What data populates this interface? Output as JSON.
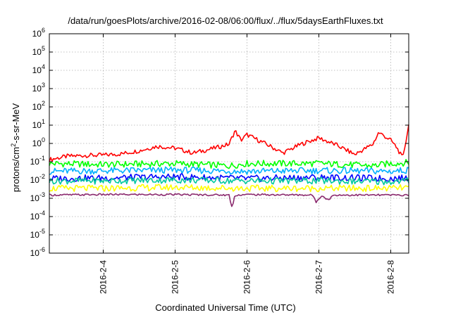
{
  "chart_data": {
    "type": "line",
    "title": "/data/run/goesPlots/archive/2016-02-08/06:00/flux/../flux/5daysEarthFluxes.txt",
    "xlabel": "Coordinated Universal Time (UTC)",
    "ylabel_parts": [
      "protons/cm",
      "2",
      "-s-sr-MeV"
    ],
    "yscale": "log",
    "ylim": [
      1e-06,
      1000000.0
    ],
    "xlim": [
      "2016-02-03T06:00",
      "2016-02-08T06:00"
    ],
    "grid": true,
    "x_ticks": [
      {
        "label": "2016-2-4",
        "date": "2016-02-04T00:00"
      },
      {
        "label": "2016-2-5",
        "date": "2016-02-05T00:00"
      },
      {
        "label": "2016-2-6",
        "date": "2016-02-06T00:00"
      },
      {
        "label": "2016-2-7",
        "date": "2016-02-07T00:00"
      },
      {
        "label": "2016-2-8",
        "date": "2016-02-08T00:00"
      }
    ],
    "y_ticks": [
      {
        "base": "10",
        "exp": "-6",
        "value": 1e-06
      },
      {
        "base": "10",
        "exp": "-5",
        "value": 1e-05
      },
      {
        "base": "10",
        "exp": "-4",
        "value": 0.0001
      },
      {
        "base": "10",
        "exp": "-3",
        "value": 0.001
      },
      {
        "base": "10",
        "exp": "-2",
        "value": 0.01
      },
      {
        "base": "10",
        "exp": "-1",
        "value": 0.1
      },
      {
        "base": "10",
        "exp": "0",
        "value": 1
      },
      {
        "base": "10",
        "exp": "1",
        "value": 10
      },
      {
        "base": "10",
        "exp": "2",
        "value": 100
      },
      {
        "base": "10",
        "exp": "3",
        "value": 1000
      },
      {
        "base": "10",
        "exp": "4",
        "value": 10000
      },
      {
        "base": "10",
        "exp": "5",
        "value": 100000
      },
      {
        "base": "10",
        "exp": "6",
        "value": 1000000
      }
    ],
    "series": [
      {
        "color": "#ff0000",
        "points": [
          [
            "2016-02-03T06:00",
            0.13
          ],
          [
            "2016-02-03T12:00",
            0.2
          ],
          [
            "2016-02-03T18:00",
            0.22
          ],
          [
            "2016-02-04T00:00",
            0.23
          ],
          [
            "2016-02-04T06:00",
            0.27
          ],
          [
            "2016-02-04T12:00",
            0.4
          ],
          [
            "2016-02-04T18:00",
            0.7
          ],
          [
            "2016-02-05T00:00",
            0.55
          ],
          [
            "2016-02-05T06:00",
            0.3
          ],
          [
            "2016-02-05T12:00",
            0.5
          ],
          [
            "2016-02-05T18:00",
            0.9
          ],
          [
            "2016-02-05T20:00",
            5.0
          ],
          [
            "2016-02-05T22:00",
            1.5
          ],
          [
            "2016-02-06T00:00",
            3.0
          ],
          [
            "2016-02-06T06:00",
            1.0
          ],
          [
            "2016-02-06T12:00",
            0.3
          ],
          [
            "2016-02-06T18:00",
            0.9
          ],
          [
            "2016-02-07T00:00",
            2.0
          ],
          [
            "2016-02-07T06:00",
            0.8
          ],
          [
            "2016-02-07T12:00",
            0.25
          ],
          [
            "2016-02-07T18:00",
            0.9
          ],
          [
            "2016-02-07T20:00",
            4.0
          ],
          [
            "2016-02-08T00:00",
            1.5
          ],
          [
            "2016-02-08T02:00",
            0.6
          ],
          [
            "2016-02-08T04:00",
            0.15
          ],
          [
            "2016-02-08T06:00",
            10.0
          ]
        ]
      },
      {
        "color": "#00ff00",
        "points": [
          [
            "2016-02-03T06:00",
            0.08
          ],
          [
            "2016-02-04T00:00",
            0.07
          ],
          [
            "2016-02-05T00:00",
            0.08
          ],
          [
            "2016-02-05T18:00",
            0.06
          ],
          [
            "2016-02-06T00:00",
            0.08
          ],
          [
            "2016-02-07T00:00",
            0.08
          ],
          [
            "2016-02-07T18:00",
            0.06
          ],
          [
            "2016-02-08T00:00",
            0.08
          ],
          [
            "2016-02-08T06:00",
            0.09
          ]
        ]
      },
      {
        "color": "#00b0ff",
        "points": [
          [
            "2016-02-03T06:00",
            0.03
          ],
          [
            "2016-02-04T00:00",
            0.032
          ],
          [
            "2016-02-05T00:00",
            0.035
          ],
          [
            "2016-02-06T00:00",
            0.03
          ],
          [
            "2016-02-07T00:00",
            0.033
          ],
          [
            "2016-02-08T00:00",
            0.03
          ],
          [
            "2016-02-08T06:00",
            0.035
          ]
        ]
      },
      {
        "color": "#0000ff",
        "points": [
          [
            "2016-02-03T06:00",
            0.012
          ],
          [
            "2016-02-04T00:00",
            0.013
          ],
          [
            "2016-02-05T00:00",
            0.015
          ],
          [
            "2016-02-06T00:00",
            0.012
          ],
          [
            "2016-02-07T00:00",
            0.014
          ],
          [
            "2016-02-08T00:00",
            0.012
          ],
          [
            "2016-02-08T06:00",
            0.013
          ]
        ]
      },
      {
        "color": "#00c8a0",
        "points": [
          [
            "2016-02-03T06:00",
            0.009
          ],
          [
            "2016-02-04T00:00",
            0.009
          ],
          [
            "2016-02-05T00:00",
            0.01
          ],
          [
            "2016-02-06T00:00",
            0.009
          ],
          [
            "2016-02-07T00:00",
            0.009
          ],
          [
            "2016-02-08T00:00",
            0.008
          ],
          [
            "2016-02-08T06:00",
            0.009
          ]
        ]
      },
      {
        "color": "#ffff00",
        "points": [
          [
            "2016-02-03T06:00",
            0.0035
          ],
          [
            "2016-02-04T00:00",
            0.0035
          ],
          [
            "2016-02-05T00:00",
            0.004
          ],
          [
            "2016-02-06T00:00",
            0.0035
          ],
          [
            "2016-02-07T00:00",
            0.0035
          ],
          [
            "2016-02-08T00:00",
            0.0035
          ],
          [
            "2016-02-08T06:00",
            0.0038
          ]
        ]
      },
      {
        "color": "#8b2a6e",
        "points": [
          [
            "2016-02-03T06:00",
            0.0015
          ],
          [
            "2016-02-04T00:00",
            0.0016
          ],
          [
            "2016-02-05T00:00",
            0.0016
          ],
          [
            "2016-02-05T18:00",
            0.0015
          ],
          [
            "2016-02-05T19:00",
            0.0003
          ],
          [
            "2016-02-05T20:00",
            0.0015
          ],
          [
            "2016-02-06T00:00",
            0.0016
          ],
          [
            "2016-02-06T22:00",
            0.0015
          ],
          [
            "2016-02-06T23:00",
            0.0006
          ],
          [
            "2016-02-07T01:00",
            0.0015
          ],
          [
            "2016-02-07T03:00",
            0.0008
          ],
          [
            "2016-02-07T05:00",
            0.0015
          ],
          [
            "2016-02-08T00:00",
            0.0015
          ],
          [
            "2016-02-08T06:00",
            0.0015
          ]
        ]
      }
    ]
  }
}
